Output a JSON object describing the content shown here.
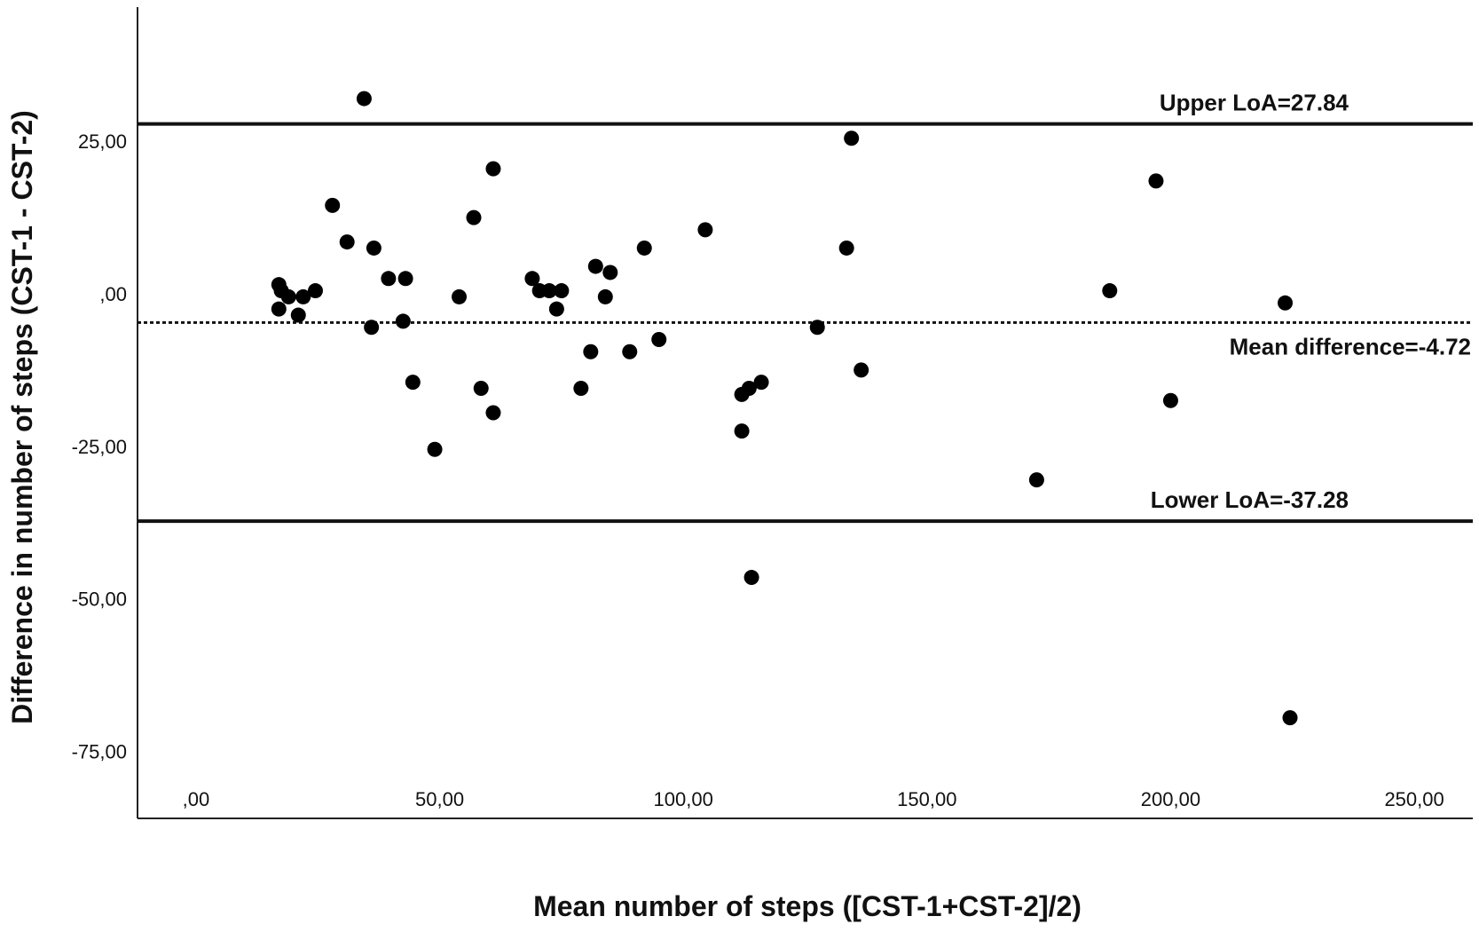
{
  "chart_data": {
    "type": "scatter",
    "title": "",
    "xlabel": "Mean number of steps ([CST-1+CST-2]/2)",
    "ylabel": "Difference in number of steps (CST-1 - CST-2)",
    "xlim": [
      -12,
      262
    ],
    "ylim": [
      -86,
      47
    ],
    "x_ticks": [
      0,
      50,
      100,
      150,
      200,
      250
    ],
    "x_tick_labels": [
      ",00",
      "50,00",
      "100,00",
      "150,00",
      "200,00",
      "250,00"
    ],
    "y_ticks": [
      25,
      0,
      -25,
      -50,
      -75
    ],
    "y_tick_labels": [
      "25,00",
      ",00",
      "-25,00",
      "-50,00",
      "-75,00"
    ],
    "grid": false,
    "legend": "none",
    "reference_lines": [
      {
        "y": 27.84,
        "label": "Upper LoA=27.84",
        "style": "solid"
      },
      {
        "y": -4.72,
        "label": "Mean difference=-4.72",
        "style": "dotted"
      },
      {
        "y": -37.28,
        "label": "Lower LoA=-37.28",
        "style": "solid"
      }
    ],
    "points": [
      {
        "x": 34.5,
        "y": 32
      },
      {
        "x": 17,
        "y": 1.5
      },
      {
        "x": 17.5,
        "y": 0.5
      },
      {
        "x": 19,
        "y": -0.5
      },
      {
        "x": 17,
        "y": -2.5
      },
      {
        "x": 21,
        "y": -3.5
      },
      {
        "x": 22,
        "y": -0.5
      },
      {
        "x": 24.5,
        "y": 0.5
      },
      {
        "x": 28,
        "y": 14.5
      },
      {
        "x": 31,
        "y": 8.5
      },
      {
        "x": 36.5,
        "y": 7.5
      },
      {
        "x": 36,
        "y": -5.5
      },
      {
        "x": 39.5,
        "y": 2.5
      },
      {
        "x": 43,
        "y": 2.5
      },
      {
        "x": 42.5,
        "y": -4.5
      },
      {
        "x": 44.5,
        "y": -14.5
      },
      {
        "x": 49,
        "y": -25.5
      },
      {
        "x": 54,
        "y": -0.5
      },
      {
        "x": 57,
        "y": 12.5
      },
      {
        "x": 58.5,
        "y": -15.5
      },
      {
        "x": 61,
        "y": 20.5
      },
      {
        "x": 61,
        "y": -19.5
      },
      {
        "x": 69,
        "y": 2.5
      },
      {
        "x": 70.5,
        "y": 0.5
      },
      {
        "x": 72.5,
        "y": 0.5
      },
      {
        "x": 74,
        "y": -2.5
      },
      {
        "x": 75,
        "y": 0.5
      },
      {
        "x": 79,
        "y": -15.5
      },
      {
        "x": 81,
        "y": -9.5
      },
      {
        "x": 82,
        "y": 4.5
      },
      {
        "x": 84,
        "y": -0.5
      },
      {
        "x": 85,
        "y": 3.5
      },
      {
        "x": 89,
        "y": -9.5
      },
      {
        "x": 92,
        "y": 7.5
      },
      {
        "x": 95,
        "y": -7.5
      },
      {
        "x": 104.5,
        "y": 10.5
      },
      {
        "x": 112,
        "y": -16.5
      },
      {
        "x": 112,
        "y": -22.5
      },
      {
        "x": 113.5,
        "y": -15.5
      },
      {
        "x": 114,
        "y": -46.5
      },
      {
        "x": 116,
        "y": -14.5
      },
      {
        "x": 127.5,
        "y": -5.5
      },
      {
        "x": 133.5,
        "y": 7.5
      },
      {
        "x": 134.5,
        "y": 25.5
      },
      {
        "x": 136.5,
        "y": -12.5
      },
      {
        "x": 172.5,
        "y": -30.5
      },
      {
        "x": 187.5,
        "y": 0.5
      },
      {
        "x": 197,
        "y": 18.5
      },
      {
        "x": 200,
        "y": -17.5
      },
      {
        "x": 223.5,
        "y": -1.5
      },
      {
        "x": 224.5,
        "y": -69.5
      }
    ]
  }
}
